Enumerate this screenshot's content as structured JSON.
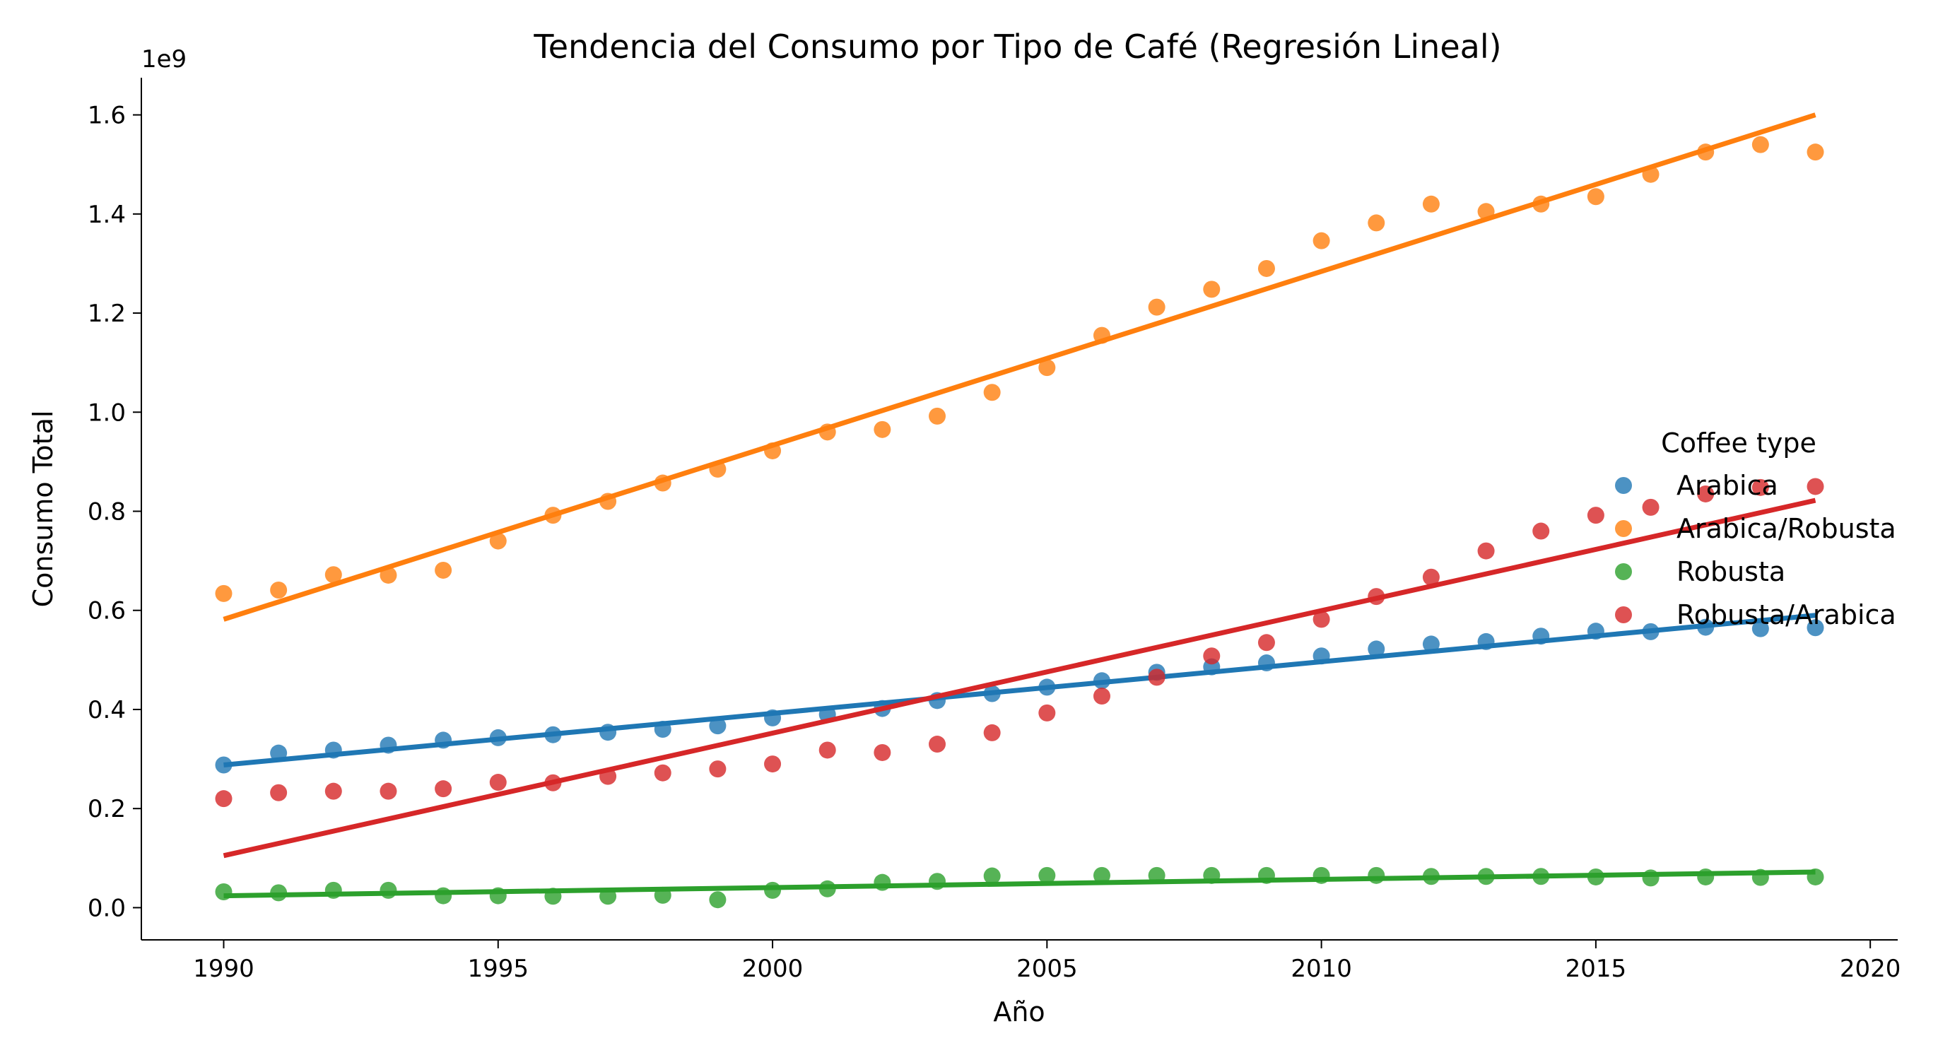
{
  "chart_data": {
    "type": "scatter",
    "title": "Tendencia del Consumo por Tipo de Café (Regresión Lineal)",
    "xlabel": "Año",
    "ylabel": "Consumo Total",
    "y_offset_label": "1e9",
    "xlim": [
      1988.5,
      2020.5
    ],
    "ylim": [
      -0.065,
      1.675
    ],
    "y_scale_factor": 1000000000,
    "x_ticks": [
      1990,
      1995,
      2000,
      2005,
      2010,
      2015,
      2020
    ],
    "x_tick_labels": [
      "1990",
      "1995",
      "2000",
      "2005",
      "2010",
      "2015",
      "2020"
    ],
    "y_ticks": [
      0.0,
      0.2,
      0.4,
      0.6,
      0.8,
      1.0,
      1.2,
      1.4,
      1.6
    ],
    "y_tick_labels": [
      "0.0",
      "0.2",
      "0.4",
      "0.6",
      "0.8",
      "1.0",
      "1.2",
      "1.4",
      "1.6"
    ],
    "grid": false,
    "legend": {
      "title": "Coffee type",
      "position": "right"
    },
    "x": [
      1990,
      1991,
      1992,
      1993,
      1994,
      1995,
      1996,
      1997,
      1998,
      1999,
      2000,
      2001,
      2002,
      2003,
      2004,
      2005,
      2006,
      2007,
      2008,
      2009,
      2010,
      2011,
      2012,
      2013,
      2014,
      2015,
      2016,
      2017,
      2018,
      2019
    ],
    "series": [
      {
        "name": "Arabica",
        "color": "#1f77b4",
        "values": [
          0.288,
          0.312,
          0.318,
          0.328,
          0.338,
          0.343,
          0.349,
          0.354,
          0.36,
          0.367,
          0.383,
          0.39,
          0.402,
          0.418,
          0.432,
          0.445,
          0.458,
          0.475,
          0.486,
          0.494,
          0.508,
          0.522,
          0.532,
          0.537,
          0.548,
          0.558,
          0.557,
          0.566,
          0.563,
          0.565
        ],
        "regression": [
          [
            1990,
            0.288
          ],
          [
            2019,
            0.59
          ]
        ]
      },
      {
        "name": "Arabica/Robusta",
        "color": "#ff7f0e",
        "values": [
          0.634,
          0.641,
          0.672,
          0.671,
          0.681,
          0.74,
          0.792,
          0.82,
          0.857,
          0.885,
          0.922,
          0.96,
          0.965,
          0.992,
          1.04,
          1.09,
          1.155,
          1.212,
          1.248,
          1.29,
          1.346,
          1.382,
          1.42,
          1.405,
          1.42,
          1.435,
          1.48,
          1.525,
          1.54,
          1.525
        ],
        "regression": [
          [
            1990,
            0.582
          ],
          [
            2019,
            1.6
          ]
        ]
      },
      {
        "name": "Robusta",
        "color": "#2ca02c",
        "values": [
          0.032,
          0.03,
          0.035,
          0.035,
          0.024,
          0.024,
          0.023,
          0.023,
          0.025,
          0.016,
          0.035,
          0.038,
          0.051,
          0.053,
          0.064,
          0.065,
          0.065,
          0.065,
          0.065,
          0.065,
          0.065,
          0.065,
          0.063,
          0.063,
          0.063,
          0.062,
          0.06,
          0.062,
          0.061,
          0.062
        ],
        "regression": [
          [
            1990,
            0.024
          ],
          [
            2019,
            0.072
          ]
        ]
      },
      {
        "name": "Robusta/Arabica",
        "color": "#d62728",
        "values": [
          0.22,
          0.232,
          0.235,
          0.235,
          0.24,
          0.253,
          0.252,
          0.265,
          0.272,
          0.28,
          0.29,
          0.318,
          0.313,
          0.33,
          0.353,
          0.393,
          0.427,
          0.465,
          0.508,
          0.535,
          0.582,
          0.628,
          0.667,
          0.72,
          0.76,
          0.792,
          0.808,
          0.835,
          0.848,
          0.85
        ],
        "regression": [
          [
            1990,
            0.105
          ],
          [
            2019,
            0.822
          ]
        ]
      }
    ]
  }
}
